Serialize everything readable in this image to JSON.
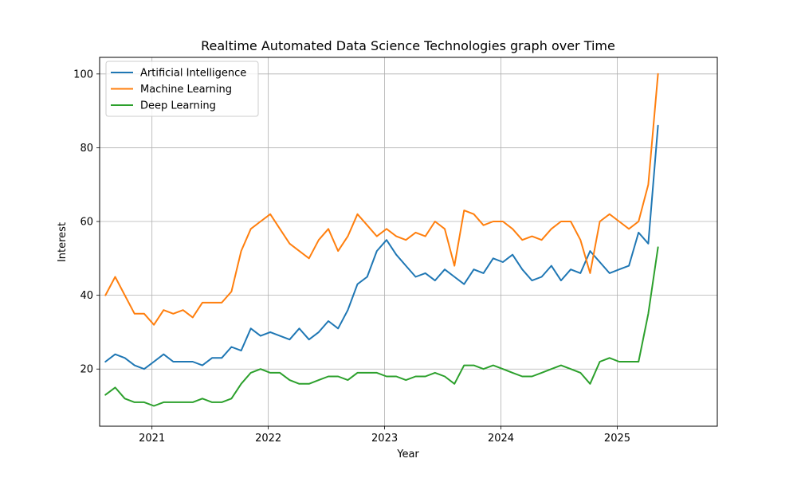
{
  "chart_data": {
    "type": "line",
    "title": "Realtime Automated Data Science Technologies graph over Time",
    "xlabel": "Year",
    "ylabel": "Interest",
    "xlim": [
      2020.55,
      2025.86
    ],
    "ylim": [
      4.5,
      104.5
    ],
    "x_ticks": [
      2021,
      2022,
      2023,
      2024,
      2025
    ],
    "x_tick_labels": [
      "2021",
      "2022",
      "2023",
      "2024",
      "2025"
    ],
    "y_ticks": [
      20,
      40,
      60,
      80,
      100
    ],
    "y_tick_labels": [
      "20",
      "40",
      "60",
      "80",
      "100"
    ],
    "grid": true,
    "legend_position": "upper-left",
    "x_start": 2020.6,
    "x_step_months": 1,
    "series": [
      {
        "name": "Artificial Intelligence",
        "color": "#1f77b4",
        "values": [
          22,
          24,
          23,
          21,
          20,
          22,
          24,
          22,
          22,
          22,
          21,
          23,
          23,
          26,
          25,
          31,
          29,
          30,
          29,
          28,
          31,
          28,
          30,
          33,
          31,
          36,
          43,
          45,
          52,
          55,
          51,
          48,
          45,
          46,
          44,
          47,
          45,
          43,
          47,
          46,
          50,
          49,
          51,
          47,
          44,
          45,
          48,
          44,
          47,
          46,
          52,
          49,
          46,
          47,
          48,
          57,
          54,
          86
        ]
      },
      {
        "name": "Machine Learning",
        "color": "#ff7f0e",
        "values": [
          40,
          45,
          40,
          35,
          35,
          32,
          36,
          35,
          36,
          34,
          38,
          38,
          38,
          41,
          52,
          58,
          60,
          62,
          58,
          54,
          52,
          50,
          55,
          58,
          52,
          56,
          62,
          59,
          56,
          58,
          56,
          55,
          57,
          56,
          60,
          58,
          48,
          63,
          62,
          59,
          60,
          60,
          58,
          55,
          56,
          55,
          58,
          60,
          60,
          55,
          46,
          60,
          62,
          60,
          58,
          60,
          70,
          100
        ]
      },
      {
        "name": "Deep Learning",
        "color": "#2ca02c",
        "values": [
          13,
          15,
          12,
          11,
          11,
          10,
          11,
          11,
          11,
          11,
          12,
          11,
          11,
          12,
          16,
          19,
          20,
          19,
          19,
          17,
          16,
          16,
          17,
          18,
          18,
          17,
          19,
          19,
          19,
          18,
          18,
          17,
          18,
          18,
          19,
          18,
          16,
          21,
          21,
          20,
          21,
          20,
          19,
          18,
          18,
          19,
          20,
          21,
          20,
          19,
          16,
          22,
          23,
          22,
          22,
          22,
          35,
          53
        ]
      }
    ]
  }
}
